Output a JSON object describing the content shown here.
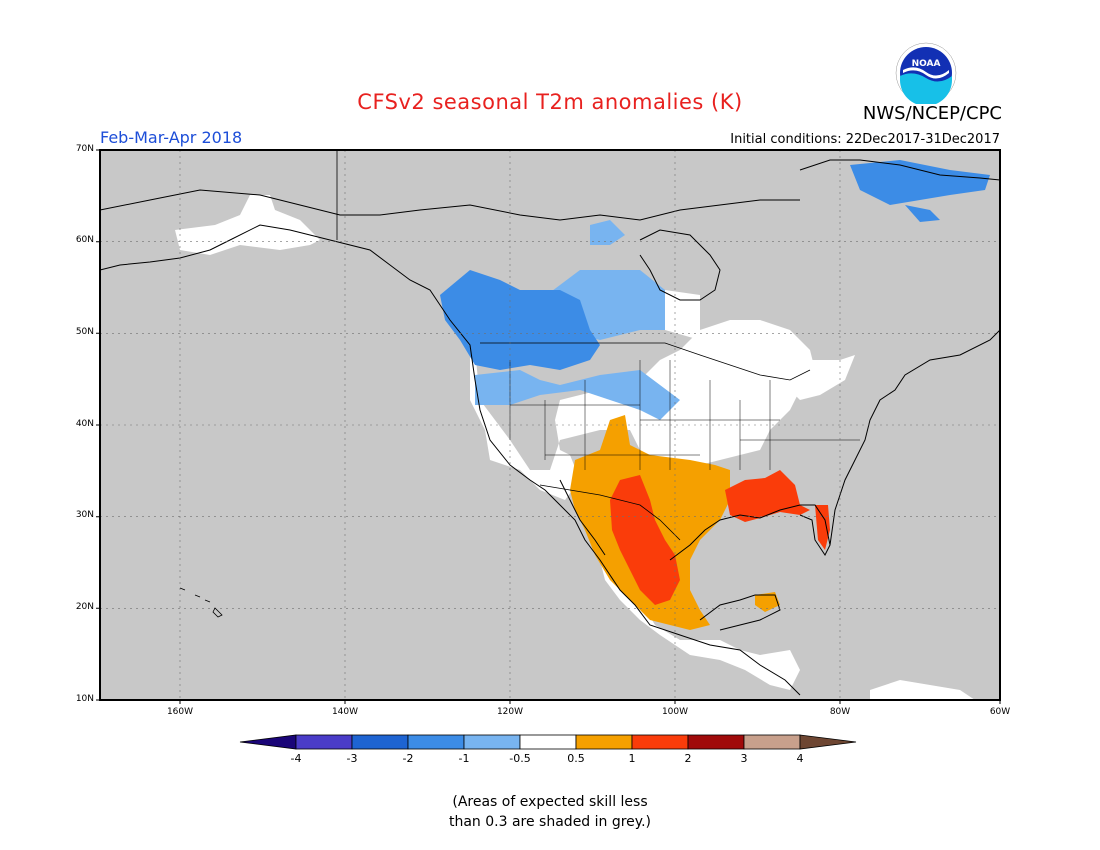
{
  "header": {
    "title": "CFSv2 seasonal T2m anomalies (K)",
    "agency": "NWS/NCEP/CPC",
    "period": "Feb-Mar-Apr 2018",
    "initial_conditions": "Initial conditions: 22Dec2017-31Dec2017",
    "logo_text": "NOAA"
  },
  "map": {
    "lat_labels": [
      "70N",
      "60N",
      "50N",
      "40N",
      "30N",
      "20N",
      "10N"
    ],
    "lon_labels": [
      "160W",
      "140W",
      "120W",
      "100W",
      "80W",
      "60W"
    ],
    "background_color": "#c8c8c8",
    "land_neutral_color": "#ffffff"
  },
  "colorbar": {
    "colors": [
      "#1a0578",
      "#4a3cc8",
      "#1e64d2",
      "#3c8ce6",
      "#78b4f0",
      "#ffffff",
      "#f5a000",
      "#fa3c0a",
      "#a00a0a",
      "#c8a08c",
      "#6e4632"
    ],
    "tick_labels": [
      "-4",
      "-3",
      "-2",
      "-1",
      "-0.5",
      "0.5",
      "1",
      "2",
      "3",
      "4"
    ]
  },
  "note": {
    "line1": "(Areas of expected skill less",
    "line2": "than 0.3 are shaded in grey.)"
  }
}
